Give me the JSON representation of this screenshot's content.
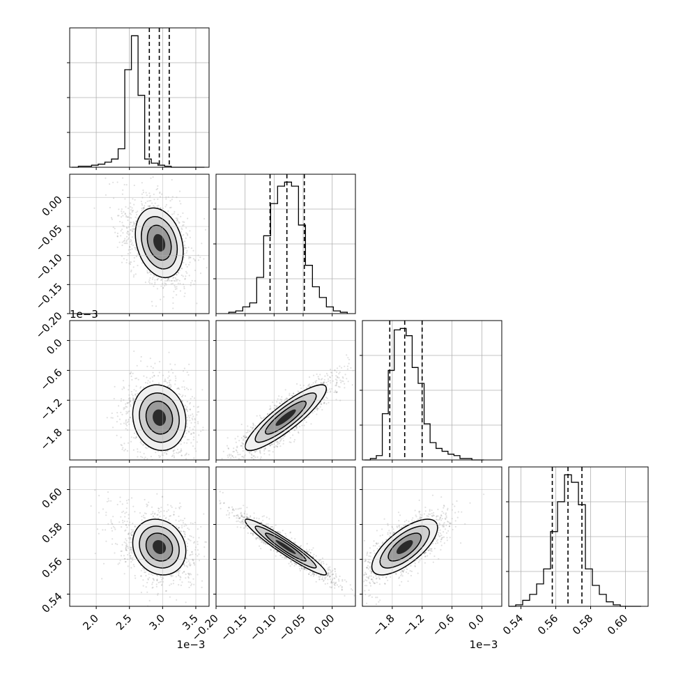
{
  "chart_data": {
    "type": "corner",
    "parameters": [
      {
        "range": [
          1.6,
          3.7
        ],
        "ticks": [
          2.0,
          2.5,
          3.0,
          3.5
        ],
        "tick_labels": [
          "2.0",
          "2.5",
          "3.0",
          "3.5"
        ],
        "offset_label": "1e−3",
        "quantiles": [
          2.8,
          2.95,
          3.1
        ],
        "hist_bins": [
          1.63,
          1.73,
          1.83,
          1.93,
          2.03,
          2.13,
          2.23,
          2.33,
          2.43,
          2.53,
          2.63,
          2.73,
          2.83,
          2.93,
          3.03,
          3.13,
          3.23,
          3.33,
          3.43,
          3.53,
          3.63
        ],
        "hist_values": [
          0,
          1,
          1,
          2,
          3,
          5,
          8,
          18,
          95,
          128,
          70,
          8,
          4,
          2,
          1,
          0,
          0,
          0,
          0,
          0
        ]
      },
      {
        "range": [
          -0.2,
          0.04
        ],
        "ticks": [
          -0.2,
          -0.15,
          -0.1,
          -0.05,
          0.0
        ],
        "tick_labels": [
          "−0.20",
          "−0.15",
          "−0.10",
          "−0.05",
          "0.00"
        ],
        "offset_label": "",
        "quantiles": [
          -0.107,
          -0.078,
          -0.048
        ],
        "hist_bins": [
          -0.178,
          -0.166,
          -0.154,
          -0.142,
          -0.13,
          -0.118,
          -0.106,
          -0.094,
          -0.082,
          -0.07,
          -0.058,
          -0.046,
          -0.034,
          -0.022,
          -0.01,
          0.002,
          0.014,
          0.026
        ],
        "hist_values": [
          1,
          2,
          5,
          8,
          27,
          58,
          82,
          95,
          98,
          95,
          66,
          36,
          20,
          12,
          5,
          2,
          1
        ]
      },
      {
        "range": [
          -2.4,
          0.4
        ],
        "ticks": [
          -1.8,
          -1.2,
          -0.6,
          0.0
        ],
        "tick_labels": [
          "−1.8",
          "−1.2",
          "−0.6",
          "0.0"
        ],
        "left_ticks": [
          -1.8,
          -1.2,
          -0.6,
          0.0
        ],
        "left_tick_labels": [
          "−1.8",
          "−1.2",
          "−0.6",
          "0.0"
        ],
        "offset_label": "1e−3",
        "quantiles": [
          -1.85,
          -1.55,
          -1.2
        ],
        "hist_bins": [
          -2.36,
          -2.24,
          -2.12,
          -2.0,
          -1.88,
          -1.76,
          -1.64,
          -1.52,
          -1.4,
          -1.28,
          -1.16,
          -1.04,
          -0.92,
          -0.8,
          -0.68,
          -0.56,
          -0.44,
          -0.32,
          -0.2,
          -0.08,
          0.04
        ],
        "hist_values": [
          0,
          1,
          3,
          32,
          62,
          90,
          91,
          86,
          64,
          53,
          25,
          12,
          8,
          6,
          4,
          3,
          1,
          1,
          0,
          0
        ]
      },
      {
        "range": [
          0.533,
          0.613
        ],
        "ticks": [
          0.54,
          0.56,
          0.58,
          0.6
        ],
        "tick_labels": [
          "0.54",
          "0.56",
          "0.58",
          "0.60"
        ],
        "offset_label": "",
        "quantiles": [
          0.558,
          0.567,
          0.575
        ],
        "hist_bins": [
          0.533,
          0.537,
          0.541,
          0.545,
          0.549,
          0.553,
          0.557,
          0.561,
          0.565,
          0.569,
          0.573,
          0.577,
          0.581,
          0.585,
          0.589,
          0.593,
          0.597,
          0.601,
          0.605,
          0.609
        ],
        "hist_values": [
          0,
          1,
          4,
          8,
          15,
          25,
          50,
          70,
          88,
          83,
          68,
          25,
          14,
          8,
          3,
          1,
          0,
          0,
          0
        ]
      }
    ],
    "pairs": [
      {
        "row": 1,
        "col": 0,
        "center": [
          2.95,
          -0.078
        ],
        "spread": [
          0.18,
          0.03
        ],
        "rho": -0.25,
        "shape": "banana"
      },
      {
        "row": 2,
        "col": 0,
        "center": [
          2.95,
          -1.55
        ],
        "spread": [
          0.2,
          0.33
        ],
        "rho": -0.1,
        "shape": "ellipse"
      },
      {
        "row": 2,
        "col": 1,
        "center": [
          -0.08,
          -1.55
        ],
        "spread": [
          0.035,
          0.33
        ],
        "rho": 0.88,
        "shape": "ellipse"
      },
      {
        "row": 3,
        "col": 0,
        "center": [
          2.95,
          0.567
        ],
        "spread": [
          0.2,
          0.008
        ],
        "rho": -0.15,
        "shape": "banana"
      },
      {
        "row": 3,
        "col": 1,
        "center": [
          -0.08,
          0.567
        ],
        "spread": [
          0.035,
          0.008
        ],
        "rho": -0.95,
        "shape": "ellipse"
      },
      {
        "row": 3,
        "col": 2,
        "center": [
          -1.55,
          0.567
        ],
        "spread": [
          0.33,
          0.008
        ],
        "rho": 0.7,
        "shape": "ellipse"
      }
    ],
    "grid": true
  }
}
